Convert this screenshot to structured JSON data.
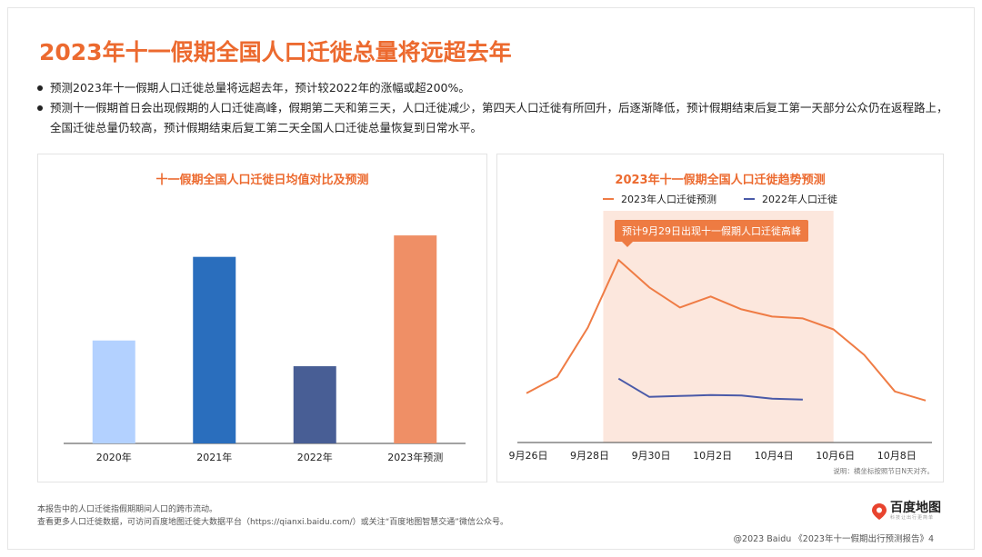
{
  "title": "2023年十一假期全国人口迁徙总量将远超去年",
  "bullets": [
    "预测2023年十一假期人口迁徙总量将远超去年，预计较2022年的涨幅或超200%。",
    "预测十一假期首日会出现假期的人口迁徙高峰，假期第二天和第三天，人口迁徙减少，第四天人口迁徙有所回升，后逐渐降低，预计假期结束后复工第一天部分公众仍在返程路上，全国迁徙总量仍较高，预计假期结束后复工第二天全国人口迁徙总量恢复到日常水平。"
  ],
  "chart_data": [
    {
      "type": "bar",
      "title": "十一假期全国人口迁徙日均值对比及预测",
      "categories": [
        "2020年",
        "2021年",
        "2022年",
        "2023年预测"
      ],
      "values": [
        48,
        87,
        36,
        97
      ],
      "ylim": [
        0,
        100
      ],
      "colors": [
        "#b3d1ff",
        "#2a6ebd",
        "#485e95",
        "#ef8f66"
      ]
    },
    {
      "type": "line",
      "title": "2023年十一假期全国人口迁徙趋势预测",
      "x": [
        "9月26日",
        "9月27日",
        "9月28日",
        "9月29日",
        "9月30日",
        "10月1日",
        "10月2日",
        "10月3日",
        "10月4日",
        "10月5日",
        "10月6日",
        "10月7日",
        "10月8日",
        "10月9日"
      ],
      "x_tick_labels": [
        "9月26日",
        "9月28日",
        "9月30日",
        "10月2日",
        "10月4日",
        "10月6日",
        "10月8日"
      ],
      "series": [
        {
          "name": "2023年人口迁徙预测",
          "color": "#ef7c45",
          "values": [
            27,
            36,
            63,
            100,
            85,
            74,
            80,
            73,
            69,
            68,
            62,
            48,
            28,
            23
          ]
        },
        {
          "name": "2022年人口迁徙",
          "color": "#4a5aa8",
          "values": [
            null,
            null,
            null,
            35,
            25,
            25.5,
            26,
            25.8,
            24,
            23.5,
            null,
            null,
            null,
            null
          ]
        }
      ],
      "ylim": [
        0,
        115
      ],
      "highlight_range": [
        "9月29日",
        "10月6日"
      ],
      "annotation": "预计9月29日出现十一假期人口迁徙高峰",
      "note": "说明：横坐标按照节日N天对齐。"
    }
  ],
  "footnote": [
    "本报告中的人口迁徙指假期期间人口的跨市流动。",
    "查看更多人口迁徙数据，可访问百度地图迁徙大数据平台（https://qianxi.baidu.com/）或关注“百度地图智慧交通”微信公众号。"
  ],
  "logo": {
    "text": "百度地图",
    "sub": "科技让出行更简单"
  },
  "copyright": "@2023 Baidu 《2023年十一假期出行预测报告》4"
}
